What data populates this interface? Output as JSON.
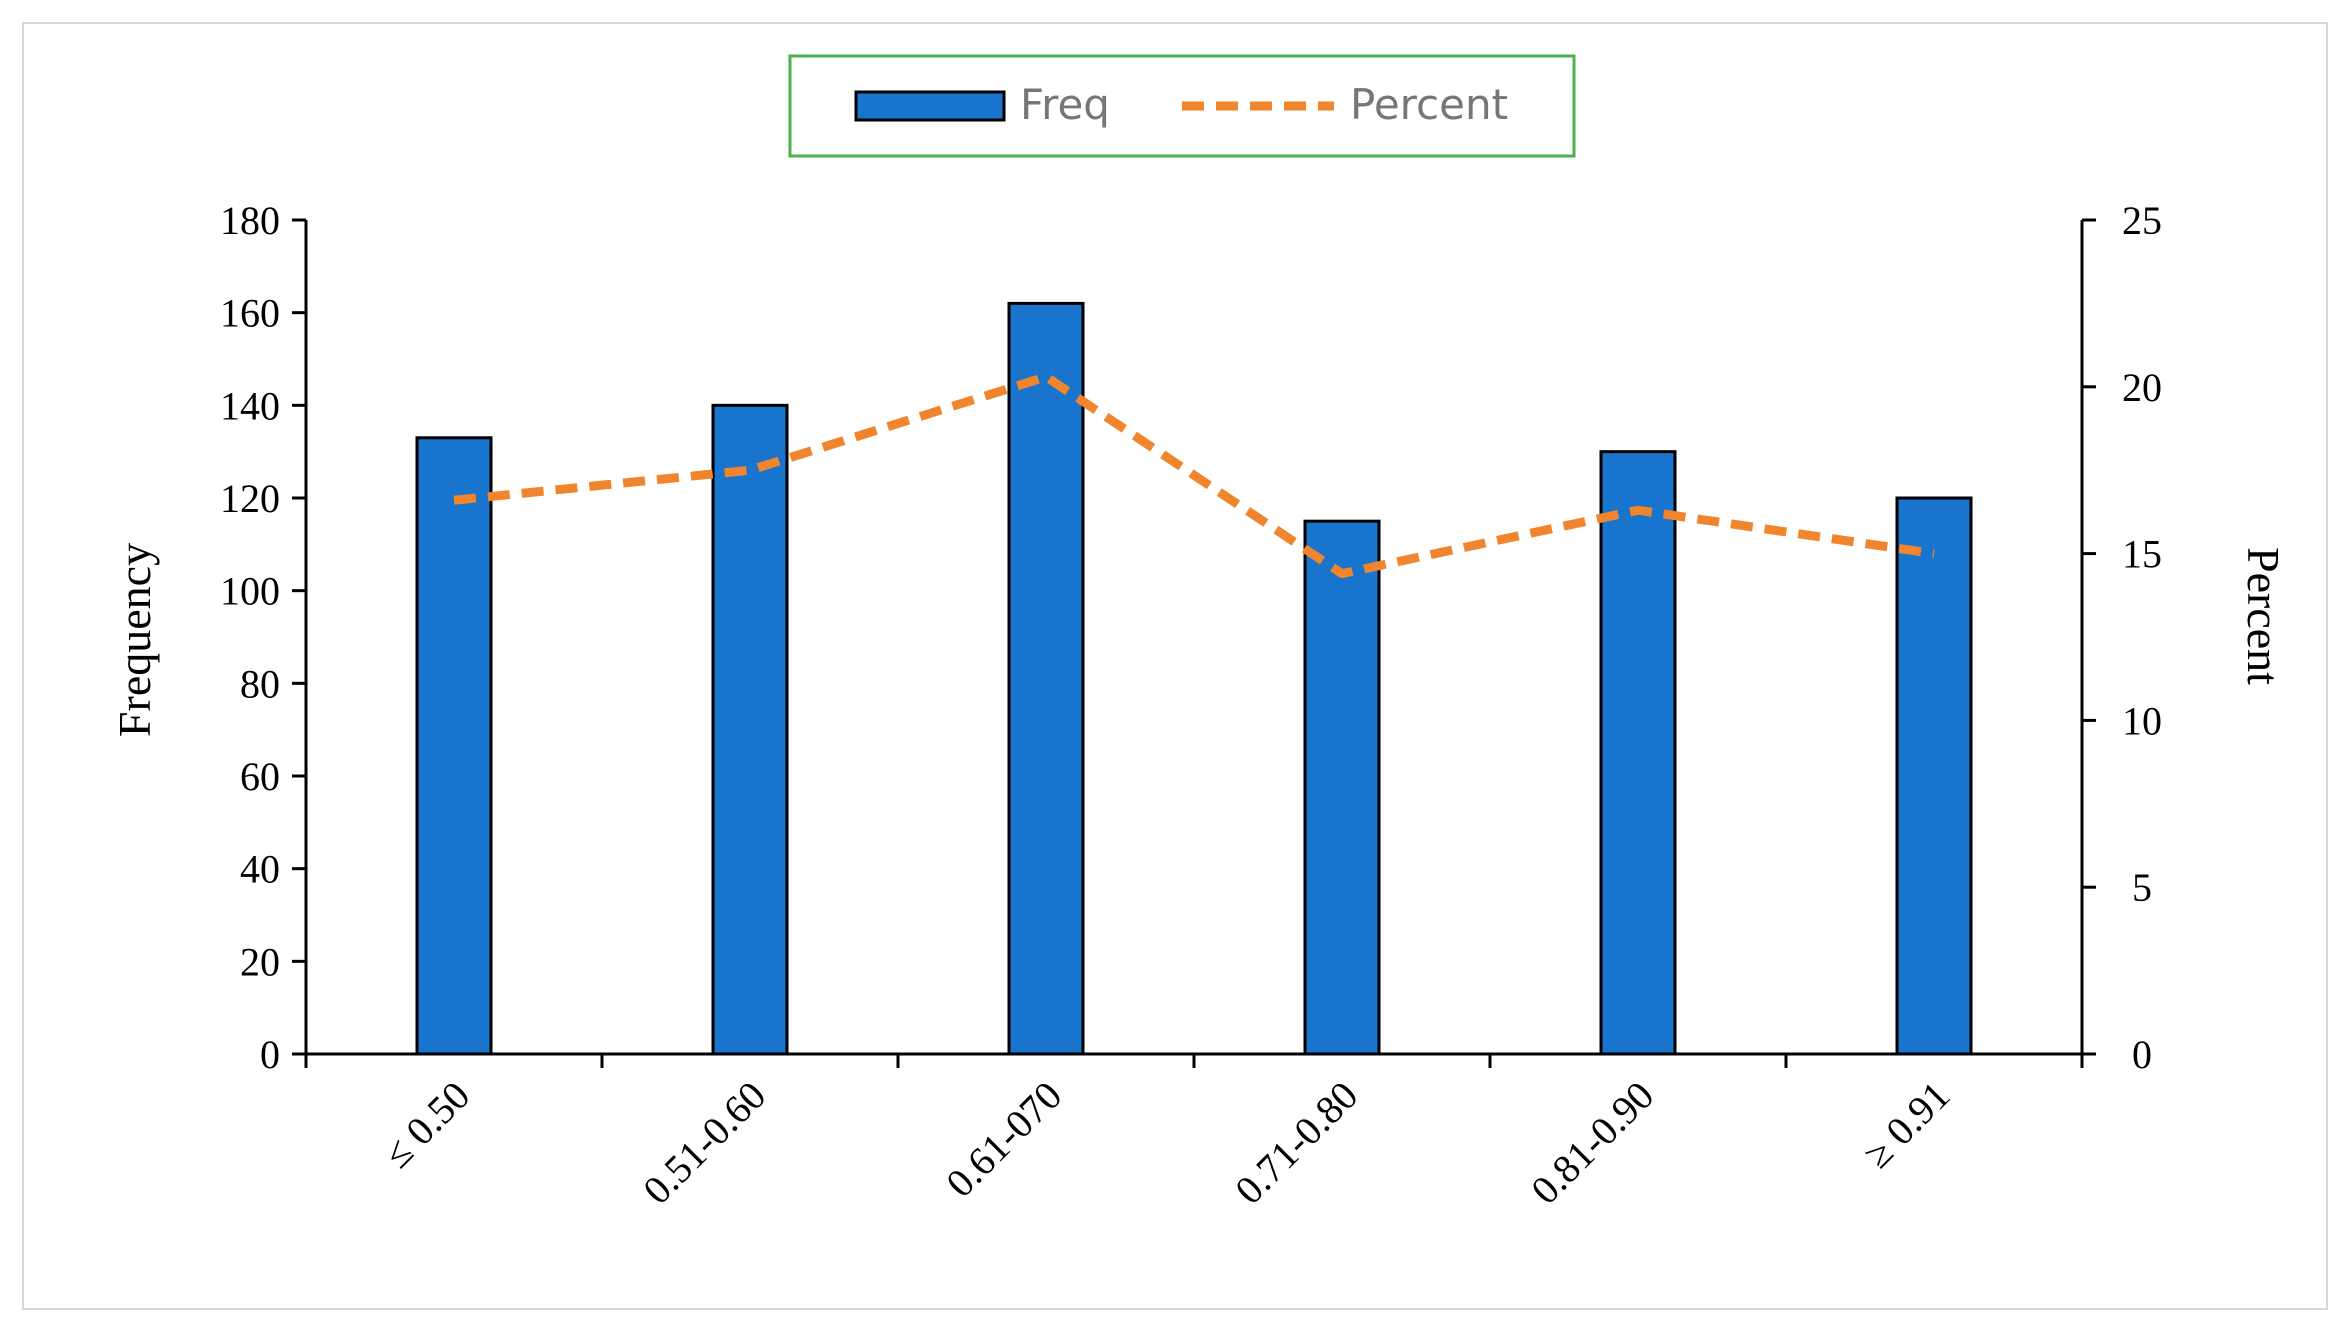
{
  "chart_data": {
    "type": "bar",
    "categories": [
      "≤ 0.50",
      "0.51-0.60",
      "0.61-070",
      "0.71-0.80",
      "0.81-0.90",
      "≥ 0.91"
    ],
    "series": [
      {
        "name": "Freq",
        "type": "bar",
        "axis": "left",
        "color": "#1874CD",
        "values": [
          133,
          140,
          162,
          115,
          130,
          120
        ]
      },
      {
        "name": "Percent",
        "type": "line",
        "style": "dashed",
        "axis": "right",
        "color": "#F0852D",
        "values": [
          16.6,
          17.5,
          20.3,
          14.4,
          16.3,
          15.0
        ]
      }
    ],
    "ylabel": "Frequency",
    "y2label": "Percent",
    "ylim": [
      0,
      180
    ],
    "y2lim": [
      0,
      25
    ],
    "yticks": [
      0,
      20,
      40,
      60,
      80,
      100,
      120,
      140,
      160,
      180
    ],
    "y2ticks": [
      0,
      5,
      10,
      15,
      20,
      25
    ],
    "legend": {
      "position": "top-center",
      "border_color": "#4CAF50"
    },
    "grid": false
  }
}
